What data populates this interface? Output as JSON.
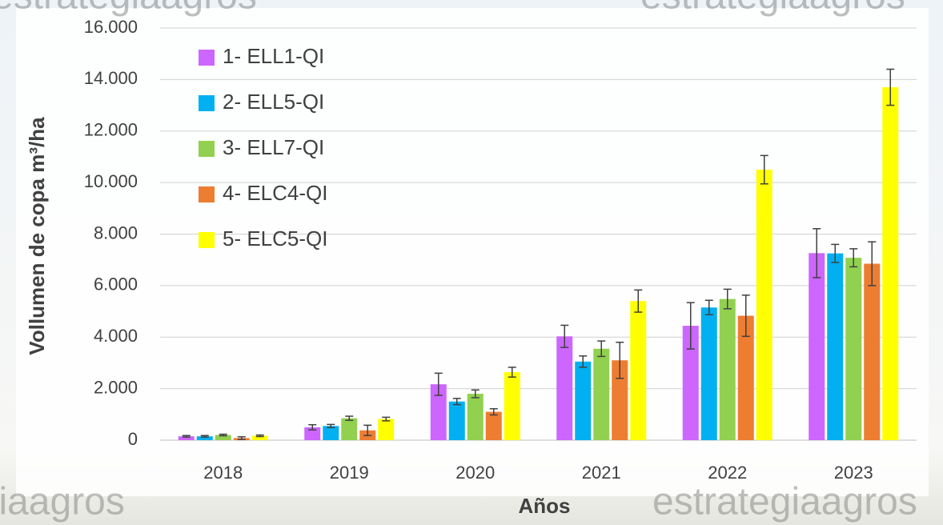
{
  "chart_data": {
    "type": "bar",
    "y_label": "Vollumen de copa m³/ha",
    "x_label": "Años",
    "watermark": "estrategiaagros",
    "categories": [
      "2018",
      "2019",
      "2020",
      "2021",
      "2022",
      "2023"
    ],
    "series": [
      {
        "name": "1- ELL1-QI",
        "color": "#cc66ff",
        "values": [
          150,
          500,
          2170,
          4030,
          4440,
          7260
        ],
        "errors": [
          30,
          100,
          430,
          430,
          900,
          950
        ]
      },
      {
        "name": "2- ELL5-QI",
        "color": "#00b0f0",
        "values": [
          150,
          550,
          1500,
          3050,
          5150,
          7250
        ],
        "errors": [
          30,
          60,
          120,
          220,
          280,
          350
        ]
      },
      {
        "name": "3- ELL7-QI",
        "color": "#92d050",
        "values": [
          200,
          850,
          1800,
          3550,
          5480,
          7080
        ],
        "errors": [
          30,
          80,
          150,
          300,
          380,
          350
        ]
      },
      {
        "name": "4- ELC4-QI",
        "color": "#ed7d31",
        "values": [
          80,
          380,
          1100,
          3100,
          4830,
          6850
        ],
        "errors": [
          50,
          200,
          120,
          700,
          800,
          850
        ]
      },
      {
        "name": "5- ELC5-QI",
        "color": "#ffff00",
        "values": [
          170,
          820,
          2640,
          5400,
          10500,
          13700
        ],
        "errors": [
          30,
          70,
          190,
          430,
          550,
          700
        ]
      }
    ],
    "ylim": [
      0,
      16000
    ],
    "yticks": [
      0,
      {
        "value": 2000,
        "label": "2.000"
      },
      {
        "value": 4000,
        "label": "4.000"
      },
      {
        "value": 6000,
        "label": "6.000"
      },
      {
        "value": 8000,
        "label": "8.000"
      },
      {
        "value": 10000,
        "label": "10.000"
      },
      {
        "value": 12000,
        "label": "12.000"
      },
      {
        "value": 14000,
        "label": "14.000"
      },
      {
        "value": 16000,
        "label": "16.000"
      }
    ],
    "grid": true,
    "legend": "top-left"
  }
}
